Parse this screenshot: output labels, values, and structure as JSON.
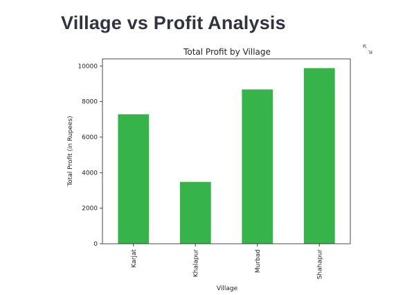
{
  "page": {
    "title": "Village vs Profit Analysis"
  },
  "icons": {
    "fullscreen": "fullscreen-expand-icon"
  },
  "chart_data": {
    "type": "bar",
    "title": "Total Profit by Village",
    "xlabel": "Village",
    "ylabel": "Total Profit (in Rupees)",
    "categories": [
      "Karjat",
      "Khalapur",
      "Murbad",
      "Shahapur"
    ],
    "values": [
      7280,
      3480,
      8680,
      9880
    ],
    "ylim": [
      0,
      10400
    ],
    "yticks": [
      0,
      2000,
      4000,
      6000,
      8000,
      10000
    ],
    "grid": false,
    "legend": "none",
    "bar_color": "#36b44a"
  }
}
